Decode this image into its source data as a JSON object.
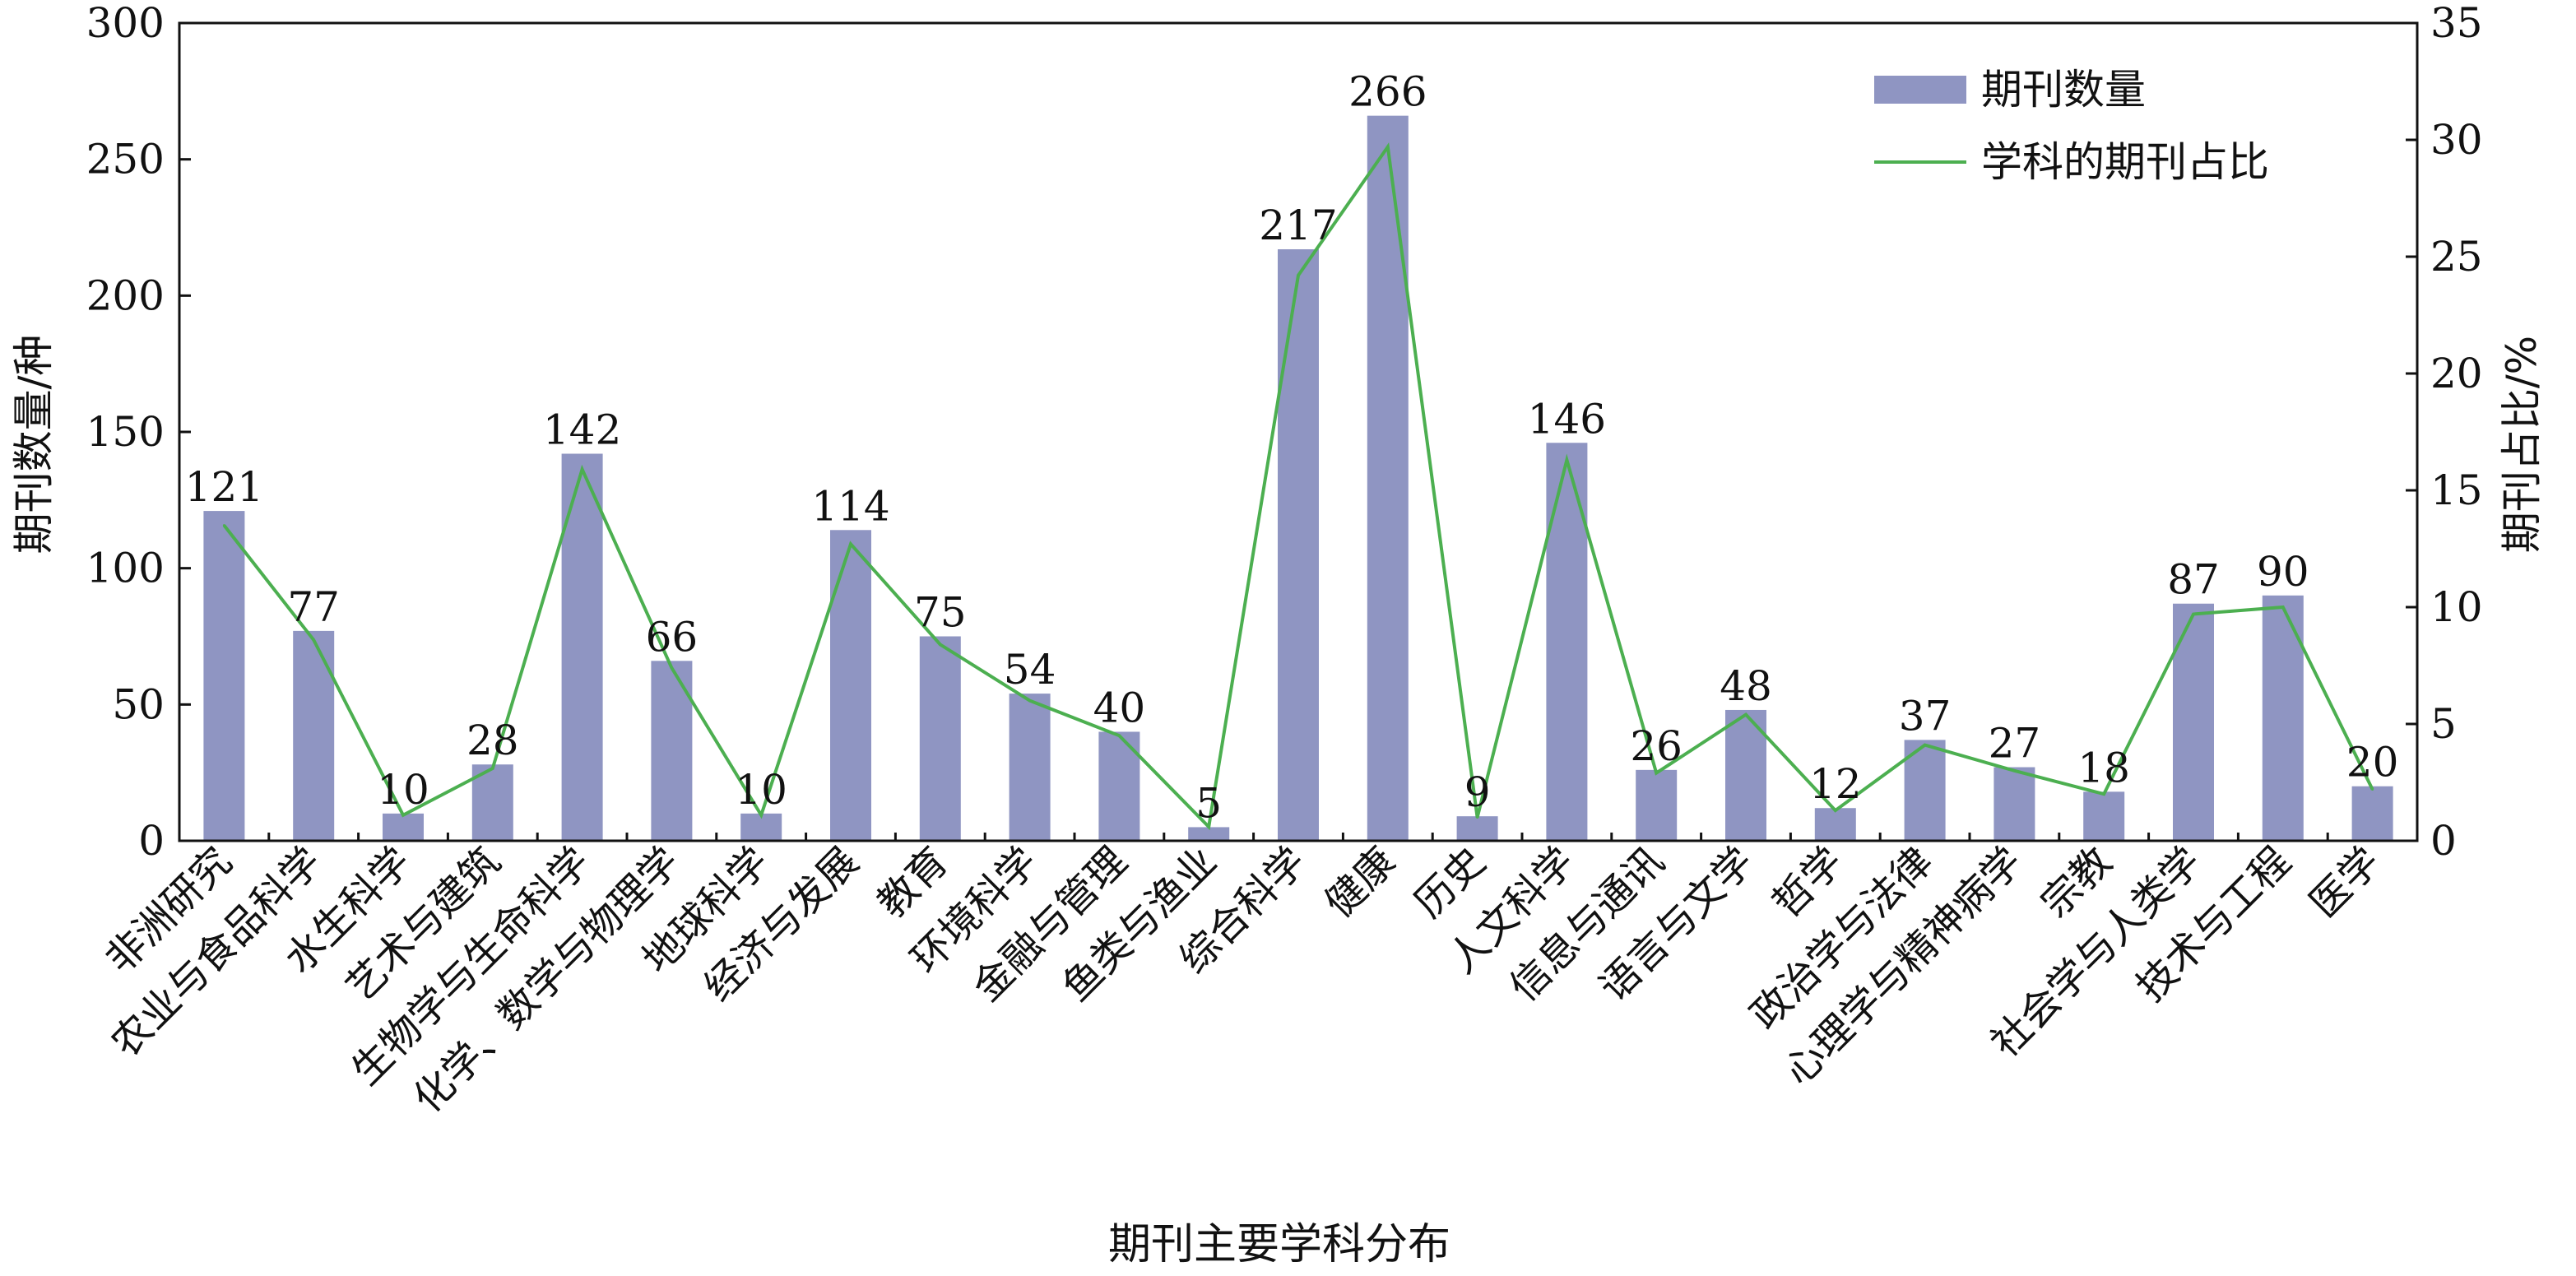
{
  "chart_data": {
    "type": "bar",
    "xlabel": "期刊主要学科分布",
    "ylabel_left": "期刊数量/种",
    "ylabel_right": "期刊占比/%",
    "ylim_left": [
      0,
      300
    ],
    "ylim_right": [
      0,
      35
    ],
    "yticks_left": [
      "0",
      "50",
      "100",
      "150",
      "200",
      "250",
      "300"
    ],
    "yticks_right": [
      "0",
      "5",
      "10",
      "15",
      "20",
      "25",
      "30",
      "35"
    ],
    "legend_position": "top-right",
    "grid": false,
    "categories": [
      "非洲研究",
      "农业与食品科学",
      "水生科学",
      "艺术与建筑",
      "生物学与生命科学",
      "化学、数学与物理学",
      "地球科学",
      "经济与发展",
      "教育",
      "环境科学",
      "金融与管理",
      "鱼类与渔业",
      "综合科学",
      "健康",
      "历史",
      "人文科学",
      "信息与通讯",
      "语言与文学",
      "哲学",
      "政治学与法律",
      "心理学与精神病学",
      "宗教",
      "社会学与人类学",
      "技术与工程",
      "医学"
    ],
    "series": [
      {
        "name": "期刊数量",
        "type": "bar",
        "axis": "left",
        "color": "#8f95c2",
        "values": [
          121,
          77,
          10,
          28,
          142,
          66,
          10,
          114,
          75,
          54,
          40,
          5,
          217,
          266,
          9,
          146,
          26,
          48,
          12,
          37,
          27,
          18,
          87,
          90,
          20
        ],
        "labels": [
          "121",
          "77",
          "10",
          "28",
          "142",
          "66",
          "10",
          "114",
          "75",
          "54",
          "40",
          "5",
          "217",
          "266",
          "9",
          "146",
          "26",
          "48",
          "12",
          "37",
          "27",
          "18",
          "87",
          "90",
          "20"
        ]
      },
      {
        "name": "学科的期刊占比",
        "type": "line",
        "axis": "right",
        "color": "#4caf50",
        "values": [
          13.5,
          8.6,
          1.1,
          3.1,
          15.9,
          7.4,
          1.1,
          12.7,
          8.4,
          6.0,
          4.5,
          0.6,
          24.2,
          29.7,
          1.0,
          16.3,
          2.9,
          5.4,
          1.3,
          4.1,
          3.0,
          2.0,
          9.7,
          10.0,
          2.2
        ]
      }
    ]
  }
}
